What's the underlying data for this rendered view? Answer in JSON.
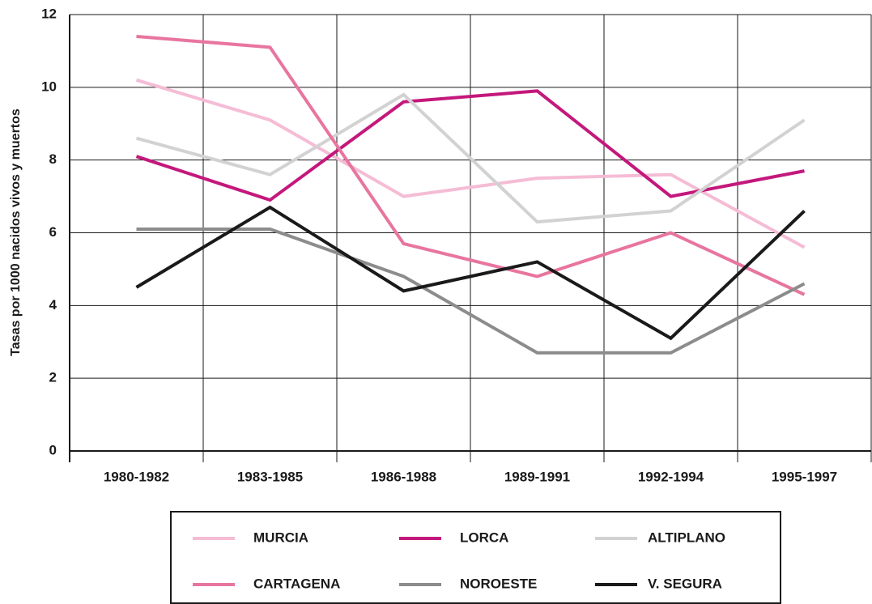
{
  "chart_data": {
    "type": "line",
    "y_label": "Tasas por 1000 nacidos vivos y muertos",
    "categories": [
      "1980-1982",
      "1983-1985",
      "1986-1988",
      "1989-1991",
      "1992-1994",
      "1995-1997"
    ],
    "series": [
      {
        "name": "MURCIA",
        "color": "#f5bcd5",
        "values": [
          10.2,
          9.1,
          7.0,
          7.5,
          7.6,
          5.6
        ]
      },
      {
        "name": "LORCA",
        "color": "#c4187c",
        "values": [
          8.1,
          6.9,
          9.6,
          9.9,
          7.0,
          7.7
        ]
      },
      {
        "name": "ALTIPLANO",
        "color": "#d2d2d2",
        "values": [
          8.6,
          7.6,
          9.8,
          6.3,
          6.6,
          9.1
        ]
      },
      {
        "name": "CARTAGENA",
        "color": "#e8759f",
        "values": [
          11.4,
          11.1,
          5.7,
          4.8,
          6.0,
          4.3
        ]
      },
      {
        "name": "NOROESTE",
        "color": "#8c8c8c",
        "values": [
          6.1,
          6.1,
          4.8,
          2.7,
          2.7,
          4.6
        ]
      },
      {
        "name": "V. SEGURA",
        "color": "#1a1a1a",
        "values": [
          4.5,
          6.7,
          4.4,
          5.2,
          3.1,
          6.6
        ]
      }
    ],
    "ylim": [
      0,
      12
    ],
    "yticks": [
      0,
      2,
      4,
      6,
      8,
      10,
      12
    ],
    "grid": true
  }
}
